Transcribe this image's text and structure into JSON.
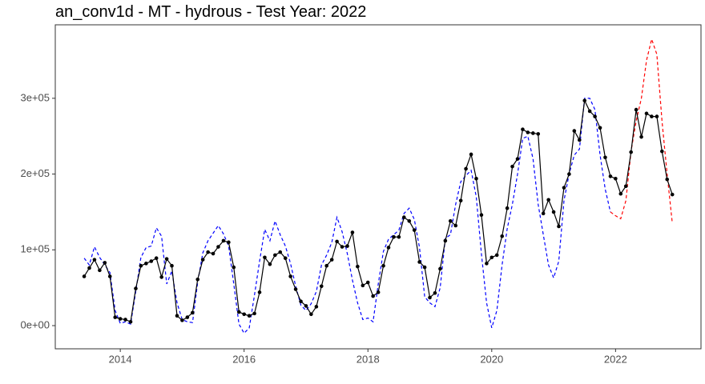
{
  "chart_data": {
    "type": "line",
    "title": "an_conv1d - MT - hydrous - Test Year: 2022",
    "x": [
      2013.417,
      2013.5,
      2013.583,
      2013.667,
      2013.75,
      2013.833,
      2013.917,
      2014,
      2014.083,
      2014.167,
      2014.25,
      2014.333,
      2014.417,
      2014.5,
      2014.583,
      2014.667,
      2014.75,
      2014.833,
      2014.917,
      2015,
      2015.083,
      2015.167,
      2015.25,
      2015.333,
      2015.417,
      2015.5,
      2015.583,
      2015.667,
      2015.75,
      2015.833,
      2015.917,
      2016,
      2016.083,
      2016.167,
      2016.25,
      2016.333,
      2016.417,
      2016.5,
      2016.583,
      2016.667,
      2016.75,
      2016.833,
      2016.917,
      2017,
      2017.083,
      2017.167,
      2017.25,
      2017.333,
      2017.417,
      2017.5,
      2017.583,
      2017.667,
      2017.75,
      2017.833,
      2017.917,
      2018,
      2018.083,
      2018.167,
      2018.25,
      2018.333,
      2018.417,
      2018.5,
      2018.583,
      2018.667,
      2018.75,
      2018.833,
      2018.917,
      2019,
      2019.083,
      2019.167,
      2019.25,
      2019.333,
      2019.417,
      2019.5,
      2019.583,
      2019.667,
      2019.75,
      2019.833,
      2019.917,
      2020,
      2020.083,
      2020.167,
      2020.25,
      2020.333,
      2020.417,
      2020.5,
      2020.583,
      2020.667,
      2020.75,
      2020.833,
      2020.917,
      2021,
      2021.083,
      2021.167,
      2021.25,
      2021.333,
      2021.417,
      2021.5,
      2021.583,
      2021.667,
      2021.75,
      2021.833,
      2021.917,
      2022,
      2022.083,
      2022.167,
      2022.25,
      2022.333,
      2022.417,
      2022.5,
      2022.583,
      2022.667,
      2022.75,
      2022.833,
      2022.917
    ],
    "series": [
      {
        "color": "#0000ff",
        "dash": true,
        "markers": false,
        "values": [
          89000,
          80000,
          104000,
          90000,
          80000,
          70000,
          20000,
          3000,
          5000,
          2000,
          45000,
          90000,
          103000,
          105000,
          129000,
          118000,
          55000,
          72000,
          30000,
          8000,
          5000,
          4000,
          57000,
          96000,
          112000,
          122000,
          132000,
          121000,
          105000,
          55000,
          2000,
          -10000,
          -3000,
          40000,
          85000,
          127000,
          112000,
          138000,
          120000,
          105000,
          82000,
          52000,
          27000,
          20000,
          29000,
          45000,
          80000,
          93000,
          110000,
          143000,
          124000,
          95000,
          60000,
          30000,
          8000,
          10000,
          5000,
          55000,
          98000,
          114000,
          120000,
          126000,
          148000,
          155000,
          140000,
          103000,
          38000,
          30000,
          25000,
          50000,
          115000,
          120000,
          160000,
          190000,
          198000,
          205000,
          170000,
          95000,
          30000,
          -3000,
          20000,
          80000,
          128000,
          160000,
          200000,
          247000,
          250000,
          220000,
          160000,
          120000,
          80000,
          63000,
          85000,
          165000,
          200000,
          225000,
          233000,
          300000,
          300000,
          285000,
          225000,
          180000,
          150000,
          null,
          null,
          null,
          null,
          null,
          null,
          null,
          null,
          null,
          null,
          null,
          null
        ]
      },
      {
        "color": "#ff0000",
        "dash": true,
        "markers": false,
        "values": [
          null,
          null,
          null,
          null,
          null,
          null,
          null,
          null,
          null,
          null,
          null,
          null,
          null,
          null,
          null,
          null,
          null,
          null,
          null,
          null,
          null,
          null,
          null,
          null,
          null,
          null,
          null,
          null,
          null,
          null,
          null,
          null,
          null,
          null,
          null,
          null,
          null,
          null,
          null,
          null,
          null,
          null,
          null,
          null,
          null,
          null,
          null,
          null,
          null,
          null,
          null,
          null,
          null,
          null,
          null,
          null,
          null,
          null,
          null,
          null,
          null,
          null,
          null,
          null,
          null,
          null,
          null,
          null,
          null,
          null,
          null,
          null,
          null,
          null,
          null,
          null,
          null,
          null,
          null,
          null,
          null,
          null,
          null,
          null,
          null,
          null,
          null,
          null,
          null,
          null,
          null,
          null,
          null,
          null,
          null,
          null,
          null,
          null,
          null,
          null,
          null,
          null,
          150000,
          145000,
          141000,
          165000,
          230000,
          270000,
          300000,
          350000,
          378000,
          358000,
          270000,
          200000,
          135000
        ]
      },
      {
        "color": "#000000",
        "dash": false,
        "markers": true,
        "values": [
          65000,
          76000,
          87000,
          73000,
          83000,
          65000,
          11000,
          9000,
          8000,
          5000,
          49000,
          79000,
          82000,
          85000,
          89000,
          64000,
          88000,
          79000,
          13000,
          7000,
          11000,
          17000,
          61000,
          87000,
          97000,
          95000,
          104000,
          112000,
          110000,
          77000,
          18000,
          15000,
          13000,
          16000,
          44000,
          90000,
          81000,
          93000,
          97000,
          89000,
          65000,
          48000,
          32000,
          26000,
          15000,
          25000,
          52000,
          79000,
          87000,
          111000,
          104000,
          105000,
          123000,
          78000,
          53000,
          57000,
          39000,
          44000,
          79000,
          103000,
          117000,
          117000,
          143000,
          138000,
          126000,
          84000,
          77000,
          37000,
          43000,
          75000,
          112000,
          138000,
          132000,
          165000,
          207000,
          226000,
          194000,
          146000,
          82000,
          90000,
          93000,
          118000,
          155000,
          210000,
          220000,
          259000,
          255000,
          254000,
          253000,
          148000,
          166000,
          150000,
          131000,
          182000,
          200000,
          257000,
          245000,
          297000,
          283000,
          276000,
          261000,
          222000,
          197000,
          194000,
          174000,
          184000,
          229000,
          285000,
          249000,
          280000,
          276000,
          276000,
          230000,
          193000,
          173000
        ]
      }
    ],
    "xlim": [
      2012.95,
      2023.38
    ],
    "xticks": [
      2014,
      2016,
      2018,
      2020,
      2022
    ],
    "ylim": [
      -30600,
      397000
    ],
    "yticks": [
      {
        "value": 0,
        "label": "0e+00"
      },
      {
        "value": 100000,
        "label": "1e+05"
      },
      {
        "value": 200000,
        "label": "2e+05"
      },
      {
        "value": 300000,
        "label": "3e+05"
      }
    ]
  }
}
